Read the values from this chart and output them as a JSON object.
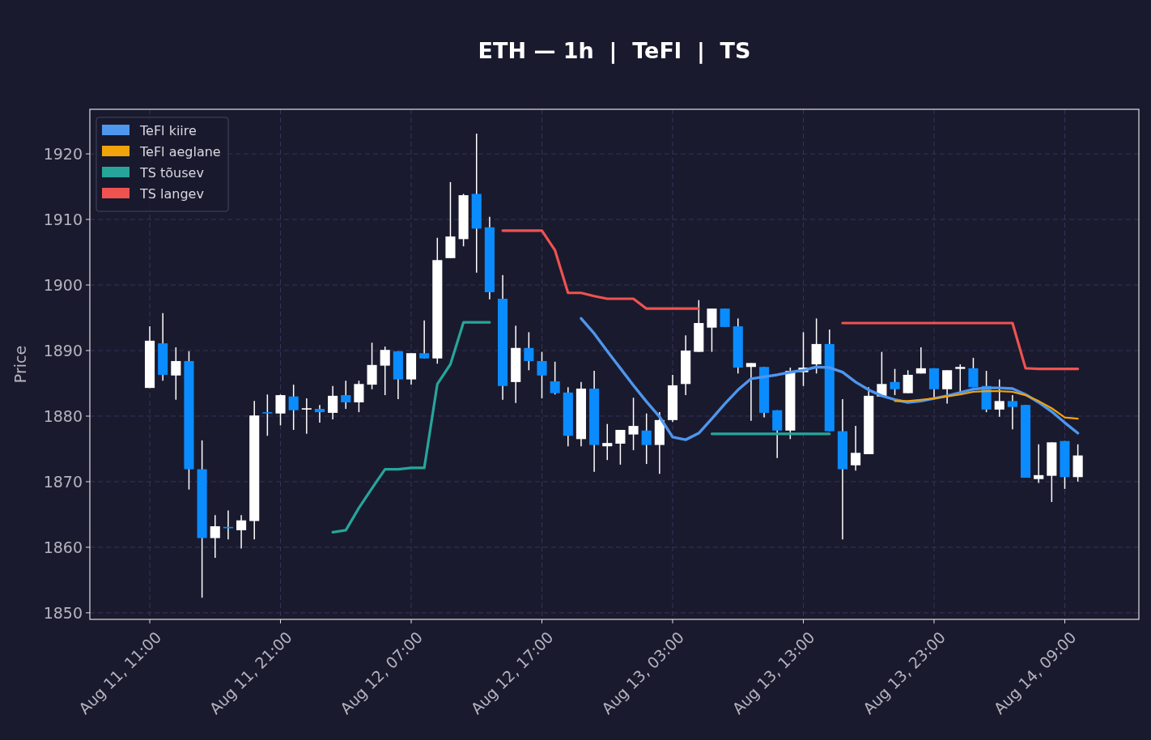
{
  "chart_data": {
    "type": "candlestick",
    "title": "ETH — 1h  |  TeFl  |  TS",
    "ylabel": "Price",
    "x": [
      "--08-11T11:00",
      "--08-11T12:00",
      "--08-11T13:00",
      "--08-11T14:00",
      "--08-11T15:00",
      "--08-11T16:00",
      "--08-11T17:00",
      "--08-11T18:00",
      "--08-11T19:00",
      "--08-11T20:00",
      "--08-11T21:00",
      "--08-11T22:00",
      "--08-11T23:00",
      "--08-12T00:00",
      "--08-12T01:00",
      "--08-12T02:00",
      "--08-12T03:00",
      "--08-12T04:00",
      "--08-12T05:00",
      "--08-12T06:00",
      "--08-12T07:00",
      "--08-12T08:00",
      "--08-12T09:00",
      "--08-12T10:00",
      "--08-12T11:00",
      "--08-12T12:00",
      "--08-12T13:00",
      "--08-12T14:00",
      "--08-12T15:00",
      "--08-12T16:00",
      "--08-12T17:00",
      "--08-12T18:00",
      "--08-12T19:00",
      "--08-12T20:00",
      "--08-12T21:00",
      "--08-12T22:00",
      "--08-12T23:00",
      "--08-13T00:00",
      "--08-13T01:00",
      "--08-13T02:00",
      "--08-13T03:00",
      "--08-13T04:00",
      "--08-13T05:00",
      "--08-13T06:00",
      "--08-13T07:00",
      "--08-13T08:00",
      "--08-13T09:00",
      "--08-13T10:00",
      "--08-13T11:00",
      "--08-13T12:00",
      "--08-13T13:00",
      "--08-13T14:00",
      "--08-13T15:00",
      "--08-13T16:00",
      "--08-13T17:00",
      "--08-13T18:00",
      "--08-13T19:00",
      "--08-13T20:00",
      "--08-13T21:00",
      "--08-13T22:00",
      "--08-13T23:00",
      "--08-14T00:00",
      "--08-14T01:00",
      "--08-14T02:00",
      "--08-14T03:00",
      "--08-14T04:00",
      "--08-14T05:00",
      "--08-14T06:00",
      "--08-14T07:00",
      "--08-14T08:00",
      "--08-14T09:00",
      "--08-14T10:00"
    ],
    "ohlc": [
      [
        1884.3,
        1893.7,
        1884.3,
        1891.5
      ],
      [
        1891.1,
        1895.7,
        1885.4,
        1886.3
      ],
      [
        1886.2,
        1890.5,
        1882.5,
        1888.4
      ],
      [
        1888.4,
        1889.9,
        1868.8,
        1871.9
      ],
      [
        1871.9,
        1876.3,
        1852.3,
        1861.4
      ],
      [
        1861.4,
        1864.9,
        1858.4,
        1863.2
      ],
      [
        1863.1,
        1865.6,
        1861.2,
        1862.9
      ],
      [
        1862.6,
        1864.9,
        1859.8,
        1864.1
      ],
      [
        1864.0,
        1882.3,
        1861.2,
        1880.1
      ],
      [
        1880.6,
        1883.3,
        1877.0,
        1880.4
      ],
      [
        1880.4,
        1883.3,
        1878.6,
        1883.2
      ],
      [
        1883.0,
        1884.8,
        1877.9,
        1880.9
      ],
      [
        1881.0,
        1882.7,
        1877.3,
        1881.2
      ],
      [
        1881.1,
        1881.7,
        1879.0,
        1880.6
      ],
      [
        1880.5,
        1884.6,
        1879.5,
        1883.1
      ],
      [
        1883.2,
        1885.4,
        1881.1,
        1882.1
      ],
      [
        1882.1,
        1885.4,
        1880.6,
        1884.9
      ],
      [
        1884.8,
        1891.2,
        1884.1,
        1887.8
      ],
      [
        1887.7,
        1890.6,
        1883.2,
        1890.1
      ],
      [
        1889.9,
        1889.9,
        1882.6,
        1885.6
      ],
      [
        1885.6,
        1889.6,
        1884.8,
        1889.6
      ],
      [
        1889.6,
        1894.6,
        1888.8,
        1888.8
      ],
      [
        1888.8,
        1907.2,
        1888.0,
        1903.8
      ],
      [
        1904.1,
        1915.7,
        1904.1,
        1907.4
      ],
      [
        1907.0,
        1913.9,
        1905.9,
        1913.7
      ],
      [
        1913.9,
        1923.1,
        1901.9,
        1908.6
      ],
      [
        1908.8,
        1910.4,
        1897.8,
        1898.9
      ],
      [
        1897.9,
        1901.5,
        1882.5,
        1884.6
      ],
      [
        1885.2,
        1893.8,
        1882.0,
        1890.4
      ],
      [
        1890.4,
        1892.8,
        1887.0,
        1888.4
      ],
      [
        1888.4,
        1889.8,
        1882.7,
        1886.2
      ],
      [
        1885.3,
        1888.3,
        1883.3,
        1883.5
      ],
      [
        1883.6,
        1884.4,
        1875.4,
        1877.0
      ],
      [
        1876.5,
        1885.2,
        1875.4,
        1884.2
      ],
      [
        1884.2,
        1886.9,
        1871.5,
        1875.6
      ],
      [
        1875.4,
        1878.8,
        1873.3,
        1875.9
      ],
      [
        1875.8,
        1877.9,
        1872.6,
        1877.9
      ],
      [
        1877.2,
        1882.8,
        1874.8,
        1878.5
      ],
      [
        1877.8,
        1880.4,
        1872.7,
        1875.6
      ],
      [
        1875.6,
        1880.6,
        1871.2,
        1879.4
      ],
      [
        1879.4,
        1886.3,
        1879.1,
        1884.7
      ],
      [
        1884.9,
        1892.3,
        1883.2,
        1890.0
      ],
      [
        1889.8,
        1897.7,
        1889.8,
        1894.2
      ],
      [
        1893.5,
        1896.4,
        1889.8,
        1896.4
      ],
      [
        1896.4,
        1896.4,
        1893.6,
        1893.6
      ],
      [
        1893.7,
        1894.9,
        1886.5,
        1887.4
      ],
      [
        1887.5,
        1888.1,
        1879.3,
        1888.1
      ],
      [
        1887.5,
        1887.5,
        1879.8,
        1880.5
      ],
      [
        1880.9,
        1880.9,
        1873.6,
        1877.8
      ],
      [
        1877.8,
        1887.4,
        1876.5,
        1886.9
      ],
      [
        1886.7,
        1892.8,
        1884.6,
        1887.4
      ],
      [
        1887.9,
        1894.9,
        1886.5,
        1891.0
      ],
      [
        1891.0,
        1893.2,
        1877.7,
        1877.7
      ],
      [
        1877.7,
        1882.6,
        1861.2,
        1871.9
      ],
      [
        1872.5,
        1878.5,
        1871.7,
        1874.4
      ],
      [
        1874.2,
        1884.4,
        1874.2,
        1883.1
      ],
      [
        1883.0,
        1889.8,
        1883.0,
        1884.9
      ],
      [
        1885.2,
        1887.2,
        1883.2,
        1884.1
      ],
      [
        1883.5,
        1887.0,
        1883.5,
        1886.3
      ],
      [
        1886.5,
        1890.5,
        1886.5,
        1887.3
      ],
      [
        1887.3,
        1887.3,
        1882.5,
        1884.1
      ],
      [
        1884.1,
        1887.0,
        1881.9,
        1887.0
      ],
      [
        1887.2,
        1887.9,
        1883.6,
        1887.5
      ],
      [
        1887.3,
        1888.9,
        1884.4,
        1884.4
      ],
      [
        1884.6,
        1886.9,
        1880.6,
        1881.0
      ],
      [
        1881.0,
        1885.6,
        1879.9,
        1882.3
      ],
      [
        1882.3,
        1883.2,
        1878.0,
        1881.4
      ],
      [
        1881.7,
        1881.7,
        1870.6,
        1870.6
      ],
      [
        1870.4,
        1875.7,
        1869.8,
        1871.0
      ],
      [
        1870.9,
        1876.0,
        1866.9,
        1876.0
      ],
      [
        1876.2,
        1876.2,
        1868.9,
        1870.7
      ],
      [
        1870.7,
        1875.7,
        1870.0,
        1874.0
      ]
    ],
    "colors": [
      "#ffffff",
      "#0a8cff",
      "#ffffff",
      "#0a8cff",
      "#0a8cff",
      "#ffffff",
      "#0a8cff",
      "#ffffff",
      "#ffffff",
      "#0a8cff",
      "#ffffff",
      "#0a8cff",
      "#ffffff",
      "#0a8cff",
      "#ffffff",
      "#0a8cff",
      "#ffffff",
      "#ffffff",
      "#ffffff",
      "#0a8cff",
      "#ffffff",
      "#0a8cff",
      "#ffffff",
      "#ffffff",
      "#ffffff",
      "#0a8cff",
      "#0a8cff",
      "#0a8cff",
      "#ffffff",
      "#0a8cff",
      "#0a8cff",
      "#0a8cff",
      "#0a8cff",
      "#ffffff",
      "#0a8cff",
      "#ffffff",
      "#ffffff",
      "#ffffff",
      "#0a8cff",
      "#ffffff",
      "#ffffff",
      "#ffffff",
      "#ffffff",
      "#ffffff",
      "#0a8cff",
      "#0a8cff",
      "#ffffff",
      "#0a8cff",
      "#0a8cff",
      "#ffffff",
      "#ffffff",
      "#ffffff",
      "#0a8cff",
      "#0a8cff",
      "#ffffff",
      "#ffffff",
      "#ffffff",
      "#0a8cff",
      "#ffffff",
      "#ffffff",
      "#0a8cff",
      "#ffffff",
      "#ffffff",
      "#0a8cff",
      "#0a8cff",
      "#ffffff",
      "#0a8cff",
      "#0a8cff",
      "#ffffff",
      "#ffffff",
      "#0a8cff",
      "#ffffff"
    ],
    "series": [
      {
        "type": "line",
        "name": "TeFl kiire",
        "color": "#4e96ee",
        "values": [
          null,
          null,
          null,
          null,
          null,
          null,
          null,
          null,
          null,
          null,
          null,
          null,
          null,
          null,
          null,
          null,
          null,
          null,
          null,
          null,
          null,
          null,
          null,
          null,
          null,
          null,
          null,
          null,
          null,
          null,
          null,
          null,
          null,
          1894.9,
          1892.6,
          1889.9,
          1887.3,
          1884.7,
          1882.2,
          1879.9,
          1876.8,
          1876.4,
          1877.4,
          1879.6,
          1881.9,
          1884.0,
          1885.7,
          1886.0,
          1886.3,
          1886.7,
          1887.0,
          1887.5,
          1887.4,
          1886.7,
          1885.2,
          1884.0,
          1883.1,
          1882.5,
          1882.1,
          1882.3,
          1882.7,
          1883.1,
          1883.6,
          1884.1,
          1884.3,
          1884.3,
          1884.2,
          1883.3,
          1882.1,
          1880.7,
          1879.0,
          1877.4
        ]
      },
      {
        "type": "line",
        "name": "TeFl aeglane",
        "color": "#f0a30a",
        "values": [
          null,
          null,
          null,
          null,
          null,
          null,
          null,
          null,
          null,
          null,
          null,
          null,
          null,
          null,
          null,
          null,
          null,
          null,
          null,
          null,
          null,
          null,
          null,
          null,
          null,
          null,
          null,
          null,
          null,
          null,
          null,
          null,
          null,
          null,
          null,
          null,
          null,
          null,
          null,
          null,
          null,
          null,
          null,
          null,
          null,
          null,
          null,
          null,
          null,
          null,
          null,
          null,
          null,
          null,
          null,
          null,
          null,
          1882.3,
          1882.3,
          1882.5,
          1882.7,
          1883.0,
          1883.3,
          1883.7,
          1883.8,
          1883.8,
          1883.7,
          1883.2,
          1882.3,
          1881.2,
          1879.8,
          1879.6
        ]
      },
      {
        "type": "line",
        "name": "TS tõusev",
        "color": "#26a69a",
        "values": [
          null,
          null,
          null,
          null,
          null,
          null,
          null,
          null,
          null,
          null,
          null,
          null,
          null,
          null,
          1862.3,
          1862.6,
          1866.0,
          1869.0,
          1871.9,
          1871.9,
          1872.1,
          1872.1,
          1884.9,
          1887.9,
          1894.3,
          1894.3,
          1894.3,
          null,
          null,
          null,
          null,
          null,
          null,
          null,
          null,
          null,
          null,
          null,
          null,
          null,
          null,
          null,
          null,
          1877.3,
          1877.3,
          1877.3,
          1877.3,
          1877.3,
          1877.3,
          1877.3,
          1877.3,
          1877.3,
          1877.3,
          null,
          null,
          null,
          null,
          null,
          null,
          null,
          null,
          null,
          null,
          null,
          null,
          null,
          null,
          null,
          null,
          null,
          null,
          null
        ]
      },
      {
        "type": "line",
        "name": "TS langev",
        "color": "#ef5350",
        "values": [
          null,
          null,
          null,
          null,
          null,
          null,
          null,
          null,
          null,
          null,
          null,
          null,
          null,
          null,
          null,
          null,
          null,
          null,
          null,
          null,
          null,
          null,
          null,
          null,
          null,
          null,
          null,
          1908.3,
          1908.3,
          1908.3,
          1908.3,
          1905.3,
          1898.8,
          1898.8,
          1898.3,
          1897.9,
          1897.9,
          1897.9,
          1896.4,
          1896.4,
          1896.4,
          1896.4,
          1896.4,
          null,
          null,
          null,
          null,
          null,
          null,
          null,
          null,
          null,
          null,
          1894.2,
          1894.2,
          1894.2,
          1894.2,
          1894.2,
          1894.2,
          1894.2,
          1894.2,
          1894.2,
          1894.2,
          1894.2,
          1894.2,
          1894.2,
          1894.2,
          1887.3,
          1887.2,
          1887.2,
          1887.2,
          1887.2
        ]
      }
    ],
    "xlim": [
      "--08-11T06:25",
      "--08-14T14:40"
    ],
    "xticks": [
      {
        "value": "--08-11T11:00",
        "label": "Aug 11, 11:00"
      },
      {
        "value": "--08-11T21:00",
        "label": "Aug 11, 21:00"
      },
      {
        "value": "--08-12T07:00",
        "label": "Aug 12, 07:00"
      },
      {
        "value": "--08-12T17:00",
        "label": "Aug 12, 17:00"
      },
      {
        "value": "--08-13T03:00",
        "label": "Aug 13, 03:00"
      },
      {
        "value": "--08-13T13:00",
        "label": "Aug 13, 13:00"
      },
      {
        "value": "--08-13T23:00",
        "label": "Aug 13, 23:00"
      },
      {
        "value": "--08-14T09:00",
        "label": "Aug 14, 09:00"
      }
    ],
    "ylim": [
      1849.0,
      1926.8
    ],
    "yticks": [
      1850,
      1860,
      1870,
      1880,
      1890,
      1900,
      1910,
      1920
    ],
    "grid": true,
    "legend": "top left"
  }
}
